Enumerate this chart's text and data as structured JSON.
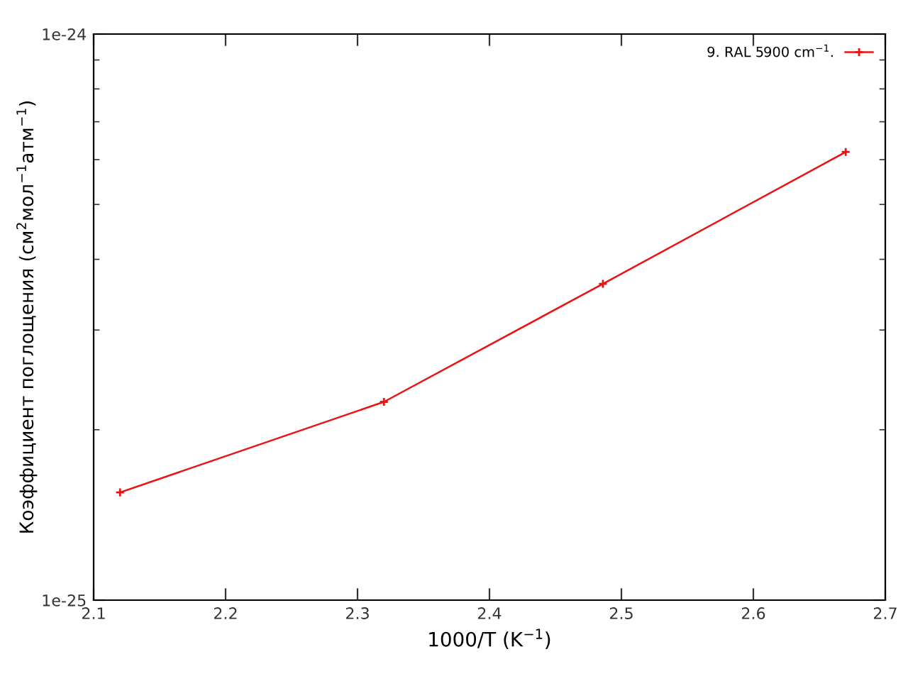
{
  "chart_data": {
    "type": "line",
    "xlabel": "1000/T (K$^{−1}$)",
    "ylabel": "Коэффициент поглощения (см$^{2}$мол$^{−1}$атм$^{−1}$)",
    "x": [
      2.12,
      2.32,
      2.486,
      2.67
    ],
    "series": [
      {
        "name": "9. RAL 5900 cm$^{−1}$.",
        "color": "#ee1111",
        "values": [
          1.55e-25,
          2.24e-25,
          3.62e-25,
          6.19e-25
        ]
      }
    ],
    "log": "y",
    "xlim": [
      2.1,
      2.7
    ],
    "xticks": [
      2.1,
      2.2,
      2.3,
      2.4,
      2.5,
      2.6,
      2.7
    ],
    "ylim": [
      1e-25,
      1e-24
    ],
    "yticks": [
      {
        "value": 1e-25,
        "label": "1e-25"
      },
      {
        "value": 1e-24,
        "label": "1e-24"
      }
    ],
    "grid": false,
    "legend": "top right",
    "marker": "cross",
    "line_style": "solid"
  }
}
